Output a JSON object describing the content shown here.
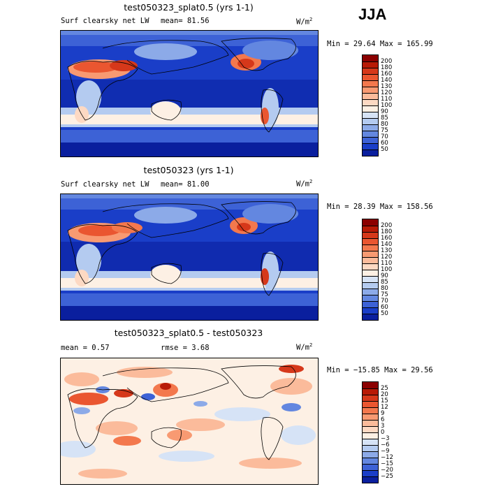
{
  "season": "JJA",
  "panels": [
    {
      "title": "test050323_splat0.5 (yrs 1-1)",
      "left_label": "Surf clearsky net LW",
      "mid_label": "mean=  81.56",
      "right_label": "",
      "units": "W/m",
      "units_sup": "2",
      "stats": "Min =  29.64 Max = 165.99",
      "colorbar": {
        "labels": [
          "200",
          "180",
          "160",
          "140",
          "130",
          "120",
          "110",
          "100",
          "90",
          "85",
          "80",
          "75",
          "70",
          "60",
          "50"
        ],
        "colors": [
          "#8b0000",
          "#b81a06",
          "#d6381a",
          "#ea5630",
          "#f3784d",
          "#f89a72",
          "#fbbb9b",
          "#fdd9c3",
          "#fdf0e4",
          "#d6e3f6",
          "#b4cbf0",
          "#8caae8",
          "#6387e0",
          "#3d62d6",
          "#1a3ec8",
          "#0a1f9e"
        ]
      }
    },
    {
      "title": "test050323 (yrs 1-1)",
      "left_label": "Surf clearsky net LW",
      "mid_label": "mean=  81.00",
      "right_label": "",
      "units": "W/m",
      "units_sup": "2",
      "stats": "Min =  28.39 Max = 158.56",
      "colorbar": {
        "labels": [
          "200",
          "180",
          "160",
          "140",
          "130",
          "120",
          "110",
          "100",
          "90",
          "85",
          "80",
          "75",
          "70",
          "60",
          "50"
        ],
        "colors": [
          "#8b0000",
          "#b81a06",
          "#d6381a",
          "#ea5630",
          "#f3784d",
          "#f89a72",
          "#fbbb9b",
          "#fdd9c3",
          "#fdf0e4",
          "#d6e3f6",
          "#b4cbf0",
          "#8caae8",
          "#6387e0",
          "#3d62d6",
          "#1a3ec8",
          "#0a1f9e"
        ]
      }
    },
    {
      "title": "test050323_splat0.5 - test050323",
      "left_label": "mean =   0.57",
      "mid_label": "rmse =   3.68",
      "right_label": "",
      "units": "W/m",
      "units_sup": "2",
      "stats": "Min = −15.85 Max =  29.56",
      "colorbar": {
        "labels": [
          "25",
          "20",
          "15",
          "12",
          "9",
          "6",
          "3",
          "0",
          "−3",
          "−6",
          "−9",
          "−12",
          "−15",
          "−20",
          "−25"
        ],
        "colors": [
          "#8b0000",
          "#b81a06",
          "#d6381a",
          "#ea5630",
          "#f3784d",
          "#f89a72",
          "#fbbb9b",
          "#fdd9c3",
          "#fdf0e4",
          "#d6e3f6",
          "#b4cbf0",
          "#8caae8",
          "#6387e0",
          "#3d62d6",
          "#1a3ec8",
          "#0a1f9e"
        ]
      }
    }
  ]
}
